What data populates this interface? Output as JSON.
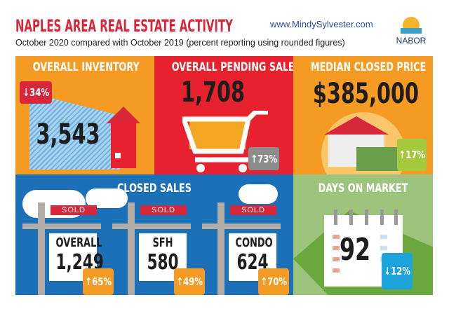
{
  "header": {
    "title": "NAPLES AREA REAL ESTATE ACTIVITY",
    "website": "www.MindySylvester.com",
    "subtitle": "October 2020 compared with October 2019 (percent reporting using rounded figures)",
    "logo_text": "NABOR"
  },
  "colors": {
    "orange": "#f59a23",
    "red": "#e8212e",
    "blue": "#1c70b8",
    "green": "#7cb65a",
    "badge_red": "#d8263a",
    "badge_gray": "#8c8c8c",
    "badge_lime": "#a4c93c",
    "badge_orange": "#f59a23",
    "badge_cyan": "#1ca3dc"
  },
  "inventory": {
    "title": "OVERALL INVENTORY",
    "value": "3,543",
    "change": "↓34%",
    "icon": "house-icon"
  },
  "pending": {
    "title": "OVERALL PENDING SALES",
    "value": "1,708",
    "change": "↑73%",
    "icon": "shopping-cart-icon"
  },
  "median": {
    "title": "MEDIAN CLOSED PRICE",
    "value": "$385,000",
    "change": "↑17%",
    "icon": "house-money-icon"
  },
  "closed": {
    "title": "CLOSED SALES",
    "signs": [
      {
        "sold": "SOLD",
        "label": "OVERALL",
        "value": "1,249",
        "change": "↑65%"
      },
      {
        "sold": "SOLD",
        "label": "SFH",
        "value": "580",
        "change": "↑49%"
      },
      {
        "sold": "SOLD",
        "label": "CONDO",
        "value": "624",
        "change": "↑70%"
      }
    ]
  },
  "days": {
    "title": "DAYS ON MARKET",
    "value": "92",
    "change": "↓12%",
    "icon": "calendar-icon"
  }
}
